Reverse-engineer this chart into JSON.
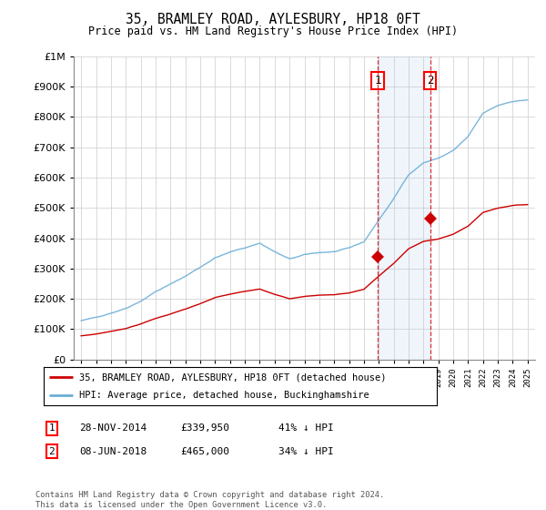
{
  "title": "35, BRAMLEY ROAD, AYLESBURY, HP18 0FT",
  "subtitle": "Price paid vs. HM Land Registry's House Price Index (HPI)",
  "legend_line1": "35, BRAMLEY ROAD, AYLESBURY, HP18 0FT (detached house)",
  "legend_line2": "HPI: Average price, detached house, Buckinghamshire",
  "footnote": "Contains HM Land Registry data © Crown copyright and database right 2024.\nThis data is licensed under the Open Government Licence v3.0.",
  "transaction1_label": "1",
  "transaction1_date": "28-NOV-2014",
  "transaction1_price": "£339,950",
  "transaction1_note": "41% ↓ HPI",
  "transaction2_label": "2",
  "transaction2_date": "08-JUN-2018",
  "transaction2_price": "£465,000",
  "transaction2_note": "34% ↓ HPI",
  "hpi_color": "#6baed6",
  "price_color": "#cc0000",
  "marker1_x": 2014.92,
  "marker2_x": 2018.44,
  "marker1_price": 339950,
  "marker2_price": 465000,
  "shade_x1": 2014.92,
  "shade_x2": 2018.44,
  "ylim_max": 1000000,
  "ylim_min": 0,
  "xlim_min": 1994.5,
  "xlim_max": 2025.5,
  "bg_color": "#ffffff",
  "grid_color": "#cccccc"
}
